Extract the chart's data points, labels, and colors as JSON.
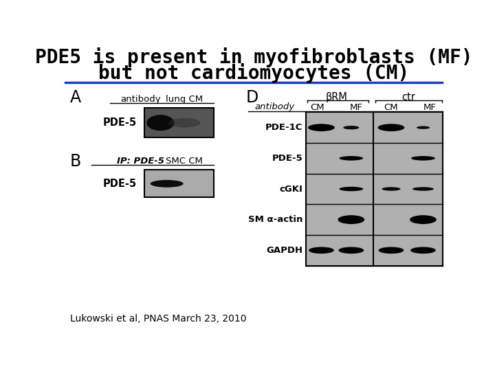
{
  "title_line1": "PDE5 is present in myofibroblasts (MF)",
  "title_line2": "but not cardiomyocytes (CM)",
  "title_fontsize": 20,
  "title_color": "#000000",
  "bg_color": "#ffffff",
  "separator_color": "#1a3fc4",
  "separator_linewidth": 2.5,
  "citation": "Lukowski et al, PNAS March 23, 2010",
  "citation_fontsize": 10,
  "panel_A_label": "A",
  "panel_B_label": "B",
  "panel_D_label": "D",
  "panel_A_col1": "antibody",
  "panel_A_col2": "lung CM",
  "panel_B_col1": "IP: PDE-5",
  "panel_B_col2": "SMC CM",
  "panel_A_row1": "PDE-5",
  "panel_B_row1": "PDE-5",
  "panel_D_header1": "βRM",
  "panel_D_header2": "ctr",
  "panel_D_col_antibody": "antibody",
  "panel_D_cols": [
    "CM",
    "MF",
    "CM",
    "MF"
  ],
  "panel_D_rows": [
    "PDE-1C",
    "PDE-5",
    "cGKI",
    "SM α-actin",
    "GAPDH"
  ],
  "blot_A_bg": "#606060",
  "blot_B_bg": "#aaaaaa",
  "blot_table_bg": "#aaaaaa"
}
